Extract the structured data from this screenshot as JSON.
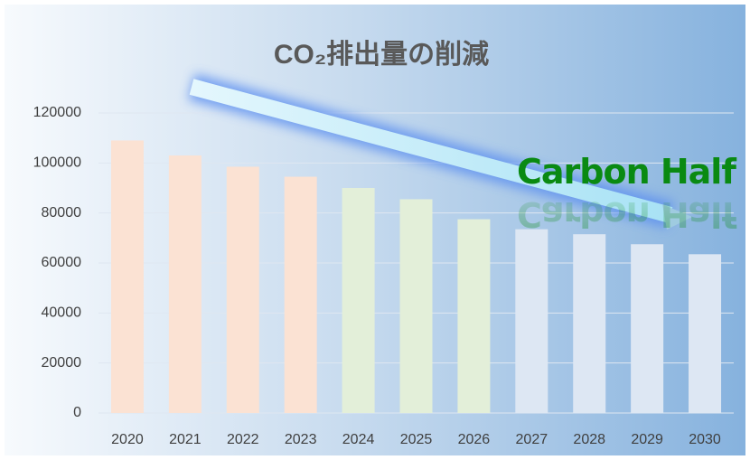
{
  "chart_data": {
    "type": "bar",
    "title": "CO₂排出量の削減",
    "annotation": "Carbon Half",
    "categories": [
      "2020",
      "2021",
      "2022",
      "2023",
      "2024",
      "2025",
      "2026",
      "2027",
      "2028",
      "2029",
      "2030"
    ],
    "values": [
      109000,
      103000,
      98500,
      94500,
      90000,
      85500,
      77500,
      73500,
      71500,
      67500,
      63500
    ],
    "colors": [
      "#fbe2d3",
      "#fbe2d3",
      "#fbe2d3",
      "#fbe2d3",
      "#e3efd9",
      "#e3efd9",
      "#e3efd9",
      "#dde7f3",
      "#dde7f3",
      "#dde7f3",
      "#dde7f3"
    ],
    "ylim": [
      0,
      120000
    ],
    "yticks": [
      0,
      20000,
      40000,
      60000,
      80000,
      100000,
      120000
    ],
    "grid": true
  }
}
